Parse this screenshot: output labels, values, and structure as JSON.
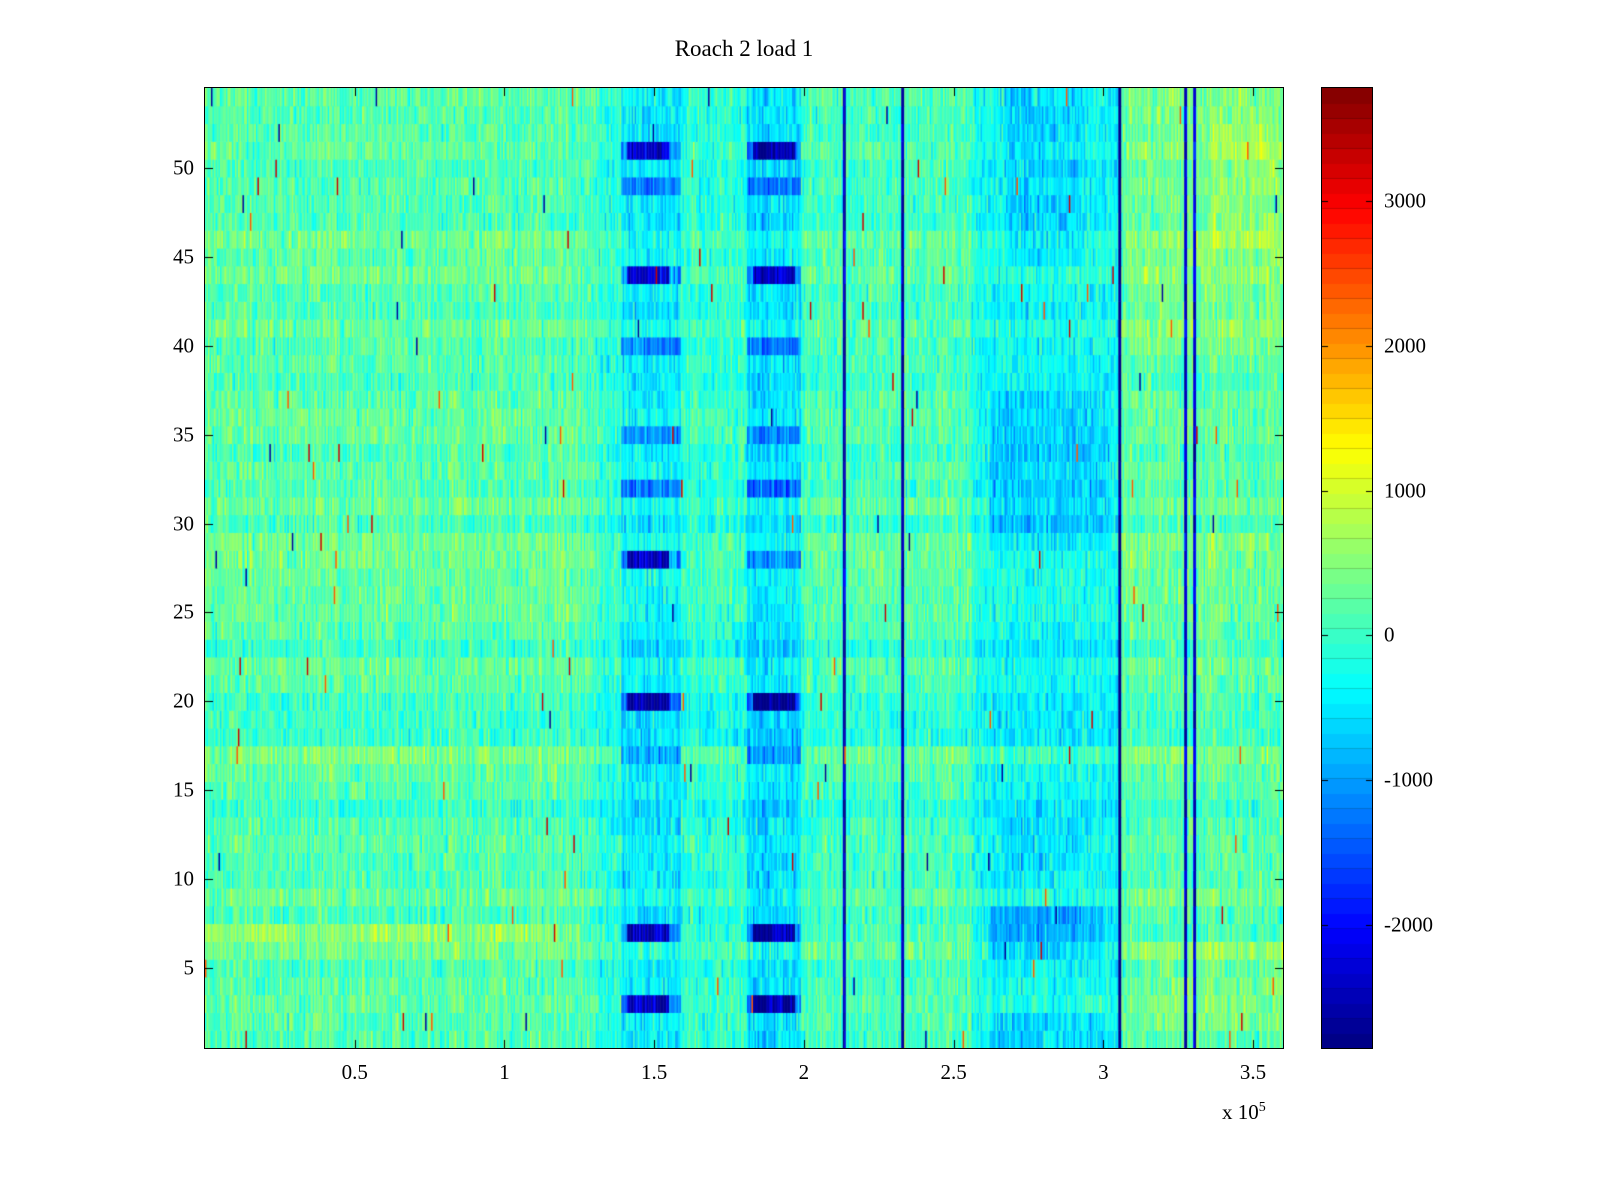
{
  "chart_data": {
    "type": "heatmap",
    "title": "Roach 2 load 1",
    "xlabel": "",
    "ylabel": "",
    "x_range": [
      0,
      360000
    ],
    "y_range": [
      0.5,
      54.5
    ],
    "x_ticks": [
      {
        "value": 50000,
        "label": "0.5"
      },
      {
        "value": 100000,
        "label": "1"
      },
      {
        "value": 150000,
        "label": "1.5"
      },
      {
        "value": 200000,
        "label": "2"
      },
      {
        "value": 250000,
        "label": "2.5"
      },
      {
        "value": 300000,
        "label": "3"
      },
      {
        "value": 350000,
        "label": "3.5"
      }
    ],
    "x_offset_label": {
      "prefix": "x 10",
      "exponent": "5"
    },
    "y_ticks": [
      {
        "value": 5,
        "label": "5"
      },
      {
        "value": 10,
        "label": "10"
      },
      {
        "value": 15,
        "label": "15"
      },
      {
        "value": 20,
        "label": "20"
      },
      {
        "value": 25,
        "label": "25"
      },
      {
        "value": 30,
        "label": "30"
      },
      {
        "value": 35,
        "label": "35"
      },
      {
        "value": 40,
        "label": "40"
      },
      {
        "value": 45,
        "label": "45"
      },
      {
        "value": 50,
        "label": "50"
      }
    ],
    "colormap": "jet",
    "color_levels": 64,
    "clim": [
      -2850,
      3780
    ],
    "colorbar_ticks": [
      {
        "value": 3000,
        "label": "3000"
      },
      {
        "value": 2000,
        "label": "2000"
      },
      {
        "value": 1000,
        "label": "1000"
      },
      {
        "value": 0,
        "label": "0"
      },
      {
        "value": -1000,
        "label": "-1000"
      },
      {
        "value": -2000,
        "label": "-2000"
      }
    ],
    "grid": {
      "rows": 54,
      "cols": 720
    },
    "texture": {
      "base": 150,
      "row_sd": 110,
      "col_sd": 90,
      "cell_sd": 240,
      "speck_probability": 0.004,
      "speck_values": [
        3300,
        -2700,
        2400
      ],
      "seed": 1337
    },
    "features": [
      {
        "kind": "rect",
        "x": [
          0,
          130000
        ],
        "y": [
          0.5,
          54.5
        ],
        "dv": 70
      },
      {
        "kind": "rect",
        "x": [
          0,
          118000
        ],
        "y": [
          6.2,
          7.9
        ],
        "dv": 480
      },
      {
        "kind": "rect",
        "x": [
          118000,
          256000
        ],
        "y": [
          6.2,
          7.9
        ],
        "dv": 140
      },
      {
        "kind": "rect",
        "x": [
          128000,
          139000
        ],
        "y": [
          0.5,
          54.5
        ],
        "dv": -150
      },
      {
        "kind": "rect",
        "x": [
          139000,
          159000
        ],
        "y": [
          0.5,
          54.5
        ],
        "dv": -520
      },
      {
        "kind": "rect",
        "x": [
          159000,
          181000
        ],
        "y": [
          0.5,
          54.5
        ],
        "dv": -200
      },
      {
        "kind": "rect",
        "x": [
          181000,
          199000
        ],
        "y": [
          0.5,
          54.5
        ],
        "dv": -620
      },
      {
        "kind": "rect",
        "x": [
          256000,
          306000
        ],
        "y": [
          0.5,
          54.5
        ],
        "dv": -380
      },
      {
        "kind": "rect",
        "x": [
          262000,
          302000
        ],
        "y": [
          29,
          37.5
        ],
        "dv": -380
      },
      {
        "kind": "rect",
        "x": [
          262000,
          300000
        ],
        "y": [
          6,
          8.2
        ],
        "dv": -520
      },
      {
        "kind": "rect",
        "x": [
          266000,
          296000
        ],
        "y": [
          10.5,
          13.5
        ],
        "dv": -260
      },
      {
        "kind": "rect",
        "x": [
          262000,
          300000
        ],
        "y": [
          0.5,
          2.5
        ],
        "dv": -300
      },
      {
        "kind": "rect",
        "x": [
          268000,
          294000
        ],
        "y": [
          45,
          54.5
        ],
        "dv": -280
      },
      {
        "kind": "rect",
        "x": [
          306000,
          360000
        ],
        "y": [
          0.5,
          54.5
        ],
        "dv": 100
      },
      {
        "kind": "rect",
        "x": [
          308000,
          360000
        ],
        "y": [
          40,
          54.5
        ],
        "dv": 180
      },
      {
        "kind": "rect",
        "x": [
          336000,
          360000
        ],
        "y": [
          46,
          53.5
        ],
        "dv": 200
      },
      {
        "kind": "rect",
        "x": [
          312000,
          360000
        ],
        "y": [
          1.5,
          6.5
        ],
        "dv": 160
      },
      {
        "kind": "rows_in_bands",
        "rows": [
          3,
          7,
          17,
          20,
          28,
          32,
          35,
          40,
          44,
          49,
          51
        ],
        "halfwidth": 0.75,
        "bands": [
          [
            139000,
            159000
          ],
          [
            181000,
            199000
          ]
        ],
        "dv": -750
      },
      {
        "kind": "spots",
        "halfwidth_x": 7000,
        "halfwidth_y": 0.8,
        "dv": -1350,
        "points": [
          [
            148000,
            3
          ],
          [
            190000,
            3
          ],
          [
            148000,
            44
          ],
          [
            190000,
            44
          ],
          [
            148000,
            51
          ],
          [
            190000,
            51
          ],
          [
            148000,
            28
          ],
          [
            190000,
            20
          ],
          [
            148000,
            20
          ],
          [
            190000,
            7
          ],
          [
            148000,
            7
          ]
        ]
      },
      {
        "kind": "vlines",
        "x": [
          213500,
          233000,
          305500,
          327500,
          330500
        ],
        "halfwidth": 650,
        "dv": -2600
      }
    ]
  }
}
